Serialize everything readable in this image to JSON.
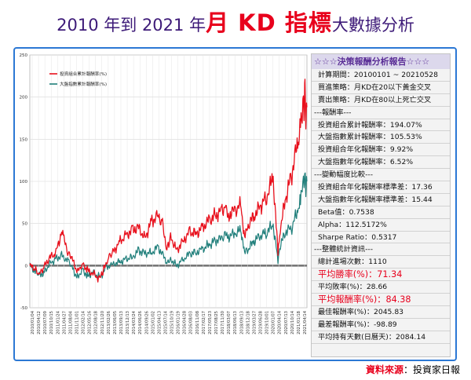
{
  "title": {
    "part1": "2010 年到 2021 年",
    "part2": "月 KD 指標",
    "part3": "大數據分析"
  },
  "source": {
    "label": "資料來源",
    "sep": "：",
    "value": "投資家日報"
  },
  "colors": {
    "portfolio": "#e8101c",
    "index": "#1f7e7a",
    "title_purple": "#3d1a78",
    "accent_red": "#e8001c",
    "frame_blue": "#2c78d4"
  },
  "panel": {
    "heading": "☆☆☆決策報酬分析報告☆☆☆",
    "rows": [
      {
        "text": "計算期間：20100101 ~ 20210528",
        "kind": "normal"
      },
      {
        "text": "買進策略：月KD在20以下黃金交叉",
        "kind": "normal"
      },
      {
        "text": "賣出策略：月KD在80以上死亡交叉",
        "kind": "normal"
      },
      {
        "text": "---報酬率---",
        "kind": "section"
      },
      {
        "text": "投資組合累計報酬率：194.07%",
        "kind": "normal"
      },
      {
        "text": "大盤指數累計報酬率：105.53%",
        "kind": "normal"
      },
      {
        "text": "投資組合年化報酬率：9.92%",
        "kind": "normal"
      },
      {
        "text": "大盤指數年化報酬率：6.52%",
        "kind": "normal"
      },
      {
        "text": "---變動幅度比較---",
        "kind": "section"
      },
      {
        "text": "投資組合年化報酬率標準差：17.36",
        "kind": "normal"
      },
      {
        "text": "大盤指數年化報酬率標準差：15.44",
        "kind": "normal"
      },
      {
        "text": "Beta值：0.7538",
        "kind": "normal"
      },
      {
        "text": "Alpha：112.5172%",
        "kind": "normal"
      },
      {
        "text": "Sharpe Ratio：0.5317",
        "kind": "normal"
      },
      {
        "text": "---整體統計資訊---",
        "kind": "section"
      },
      {
        "text": "總計進場次數：1110",
        "kind": "normal"
      },
      {
        "text": "平均勝率(%)：71.34",
        "kind": "highlight"
      },
      {
        "text": "平均敗率(%)：28.66",
        "kind": "normal"
      },
      {
        "text": "平均報酬率(%)：84.38",
        "kind": "highlight"
      },
      {
        "text": "最佳報酬率(%)：2045.83",
        "kind": "normal"
      },
      {
        "text": "最差報酬率(%)：-98.89",
        "kind": "normal"
      },
      {
        "text": "平均持有天數(日曆天)：2084.14",
        "kind": "normal"
      }
    ]
  },
  "chart_data": {
    "type": "line",
    "title": "",
    "xlabel": "",
    "ylabel": "",
    "ylim": [
      -50,
      250
    ],
    "yticks": [
      -50,
      0,
      50,
      100,
      150,
      200,
      250
    ],
    "grid": true,
    "legend_position": "top-left",
    "x_tick_labels": [
      "2010/01/04",
      "2010/04/12",
      "2010/07/09",
      "2010/10/15",
      "2011/01/24",
      "2011/04/27",
      "2011/08/04",
      "2011/11/01",
      "2012/02/14",
      "2012/05/16",
      "2012/08/18",
      "2012/11/20",
      "2013/02/26",
      "2013/06/05",
      "2013/09/13",
      "2013/12/13",
      "2014/03/24",
      "2014/06/26",
      "2014/09/26",
      "2015/01/02",
      "2015/04/13",
      "2015/07/14",
      "2015/10/19",
      "2016/01/19",
      "2016/04/28",
      "2016/08/03",
      "2016/11/08",
      "2017/02/17",
      "2017/05/23",
      "2017/08/25",
      "2017/11/30",
      "2018/03/07",
      "2018/06/13",
      "2018/09/13",
      "2018/12/18",
      "2019/03/27",
      "2019/06/28",
      "2019/10/01",
      "2020/01/07",
      "2020/04/14",
      "2020/07/13",
      "2020/10/14",
      "2021/01/18",
      "2021/04/14"
    ],
    "x_range": [
      "2010/01/04",
      "2021/05/28"
    ],
    "series": [
      {
        "name": "投資組合累計報酬率(%)",
        "color": "#e8101c",
        "points": [
          [
            "2010/01/04",
            0
          ],
          [
            "2010/03/15",
            -3
          ],
          [
            "2010/05/20",
            -12
          ],
          [
            "2010/08/01",
            -2
          ],
          [
            "2010/11/01",
            10
          ],
          [
            "2011/01/24",
            14
          ],
          [
            "2011/04/27",
            40
          ],
          [
            "2011/06/01",
            30
          ],
          [
            "2011/08/04",
            14
          ],
          [
            "2011/10/01",
            8
          ],
          [
            "2011/12/20",
            -8
          ],
          [
            "2012/03/01",
            2
          ],
          [
            "2012/05/16",
            -5
          ],
          [
            "2012/08/18",
            -10
          ],
          [
            "2012/11/20",
            -16
          ],
          [
            "2013/01/15",
            -5
          ],
          [
            "2013/04/01",
            10
          ],
          [
            "2013/06/05",
            16
          ],
          [
            "2013/09/13",
            28
          ],
          [
            "2013/12/13",
            36
          ],
          [
            "2014/03/24",
            42
          ],
          [
            "2014/06/26",
            46
          ],
          [
            "2014/09/26",
            32
          ],
          [
            "2015/01/02",
            52
          ],
          [
            "2015/04/13",
            60
          ],
          [
            "2015/06/20",
            50
          ],
          [
            "2015/08/25",
            20
          ],
          [
            "2015/10/19",
            35
          ],
          [
            "2016/01/19",
            18
          ],
          [
            "2016/04/28",
            30
          ],
          [
            "2016/08/03",
            40
          ],
          [
            "2016/11/08",
            38
          ],
          [
            "2017/02/17",
            46
          ],
          [
            "2017/05/23",
            54
          ],
          [
            "2017/08/25",
            60
          ],
          [
            "2017/11/30",
            65
          ],
          [
            "2018/01/25",
            73
          ],
          [
            "2018/03/07",
            60
          ],
          [
            "2018/06/13",
            66
          ],
          [
            "2018/09/13",
            72
          ],
          [
            "2018/10/25",
            38
          ],
          [
            "2018/12/18",
            46
          ],
          [
            "2019/03/27",
            60
          ],
          [
            "2019/06/28",
            70
          ],
          [
            "2019/10/01",
            82
          ],
          [
            "2020/01/07",
            105
          ],
          [
            "2020/03/19",
            15
          ],
          [
            "2020/04/14",
            40
          ],
          [
            "2020/07/13",
            80
          ],
          [
            "2020/10/14",
            110
          ],
          [
            "2021/01/18",
            150
          ],
          [
            "2021/02/20",
            175
          ],
          [
            "2021/04/14",
            190
          ],
          [
            "2021/04/28",
            222
          ],
          [
            "2021/05/12",
            182
          ],
          [
            "2021/05/28",
            188
          ]
        ]
      },
      {
        "name": "大盤指數累計報酬率(%)",
        "color": "#1f7e7a",
        "points": [
          [
            "2010/01/04",
            0
          ],
          [
            "2010/05/20",
            -12
          ],
          [
            "2010/08/01",
            -8
          ],
          [
            "2010/11/01",
            2
          ],
          [
            "2011/01/24",
            8
          ],
          [
            "2011/04/27",
            12
          ],
          [
            "2011/08/04",
            5
          ],
          [
            "2011/10/01",
            -2
          ],
          [
            "2011/12/20",
            -15
          ],
          [
            "2012/03/01",
            -4
          ],
          [
            "2012/05/16",
            -12
          ],
          [
            "2012/08/18",
            -8
          ],
          [
            "2012/11/20",
            -14
          ],
          [
            "2013/02/26",
            -2
          ],
          [
            "2013/06/05",
            2
          ],
          [
            "2013/09/13",
            4
          ],
          [
            "2013/12/13",
            8
          ],
          [
            "2014/03/24",
            10
          ],
          [
            "2014/06/26",
            18
          ],
          [
            "2014/09/26",
            15
          ],
          [
            "2015/01/02",
            15
          ],
          [
            "2015/04/13",
            22
          ],
          [
            "2015/08/25",
            5
          ],
          [
            "2015/10/19",
            8
          ],
          [
            "2016/01/19",
            0
          ],
          [
            "2016/04/28",
            8
          ],
          [
            "2016/08/03",
            14
          ],
          [
            "2016/11/08",
            16
          ],
          [
            "2017/02/17",
            20
          ],
          [
            "2017/05/23",
            25
          ],
          [
            "2017/08/25",
            30
          ],
          [
            "2017/11/30",
            32
          ],
          [
            "2018/01/25",
            40
          ],
          [
            "2018/03/07",
            35
          ],
          [
            "2018/06/13",
            38
          ],
          [
            "2018/09/13",
            42
          ],
          [
            "2018/10/25",
            20
          ],
          [
            "2018/12/18",
            18
          ],
          [
            "2019/03/27",
            30
          ],
          [
            "2019/06/28",
            35
          ],
          [
            "2019/10/01",
            40
          ],
          [
            "2020/01/07",
            48
          ],
          [
            "2020/03/19",
            6
          ],
          [
            "2020/04/14",
            22
          ],
          [
            "2020/07/13",
            40
          ],
          [
            "2020/10/14",
            45
          ],
          [
            "2021/01/18",
            68
          ],
          [
            "2021/02/20",
            82
          ],
          [
            "2021/04/14",
            100
          ],
          [
            "2021/04/28",
            112
          ],
          [
            "2021/05/12",
            95
          ],
          [
            "2021/05/28",
            100
          ]
        ]
      }
    ]
  }
}
